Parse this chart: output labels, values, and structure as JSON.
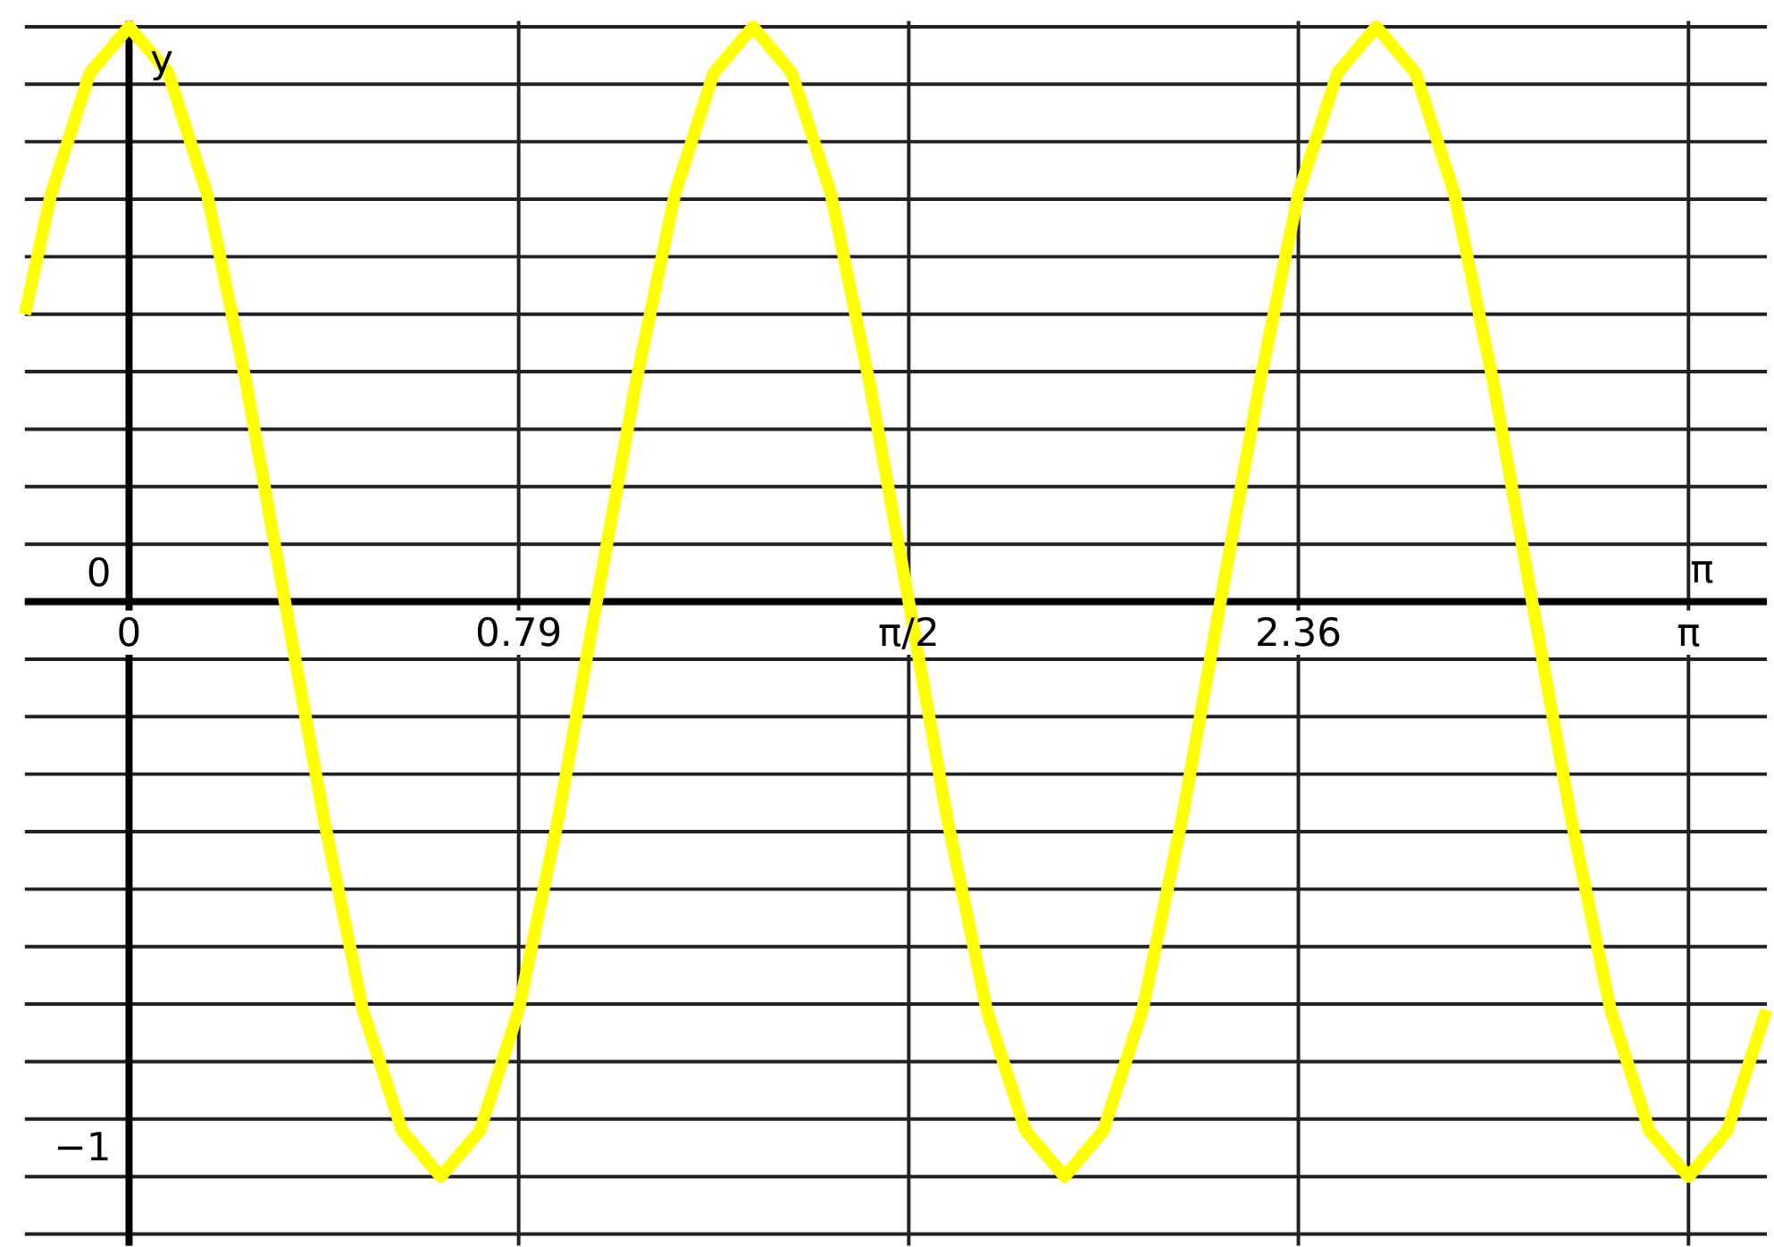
{
  "chart_data": {
    "type": "line",
    "ylabel": "y",
    "x": [
      -0.21,
      -0.157,
      -0.079,
      0,
      0.079,
      0.157,
      0.236,
      0.314,
      0.393,
      0.471,
      0.55,
      0.628,
      0.707,
      0.785,
      0.864,
      0.942,
      1.021,
      1.1,
      1.178,
      1.257,
      1.335,
      1.414,
      1.492,
      1.571,
      1.649,
      1.728,
      1.806,
      1.885,
      1.963,
      2.042,
      2.121,
      2.199,
      2.278,
      2.356,
      2.435,
      2.513,
      2.592,
      2.67,
      2.749,
      2.827,
      2.906,
      2.985,
      3.063,
      3.142,
      3.22,
      3.299
    ],
    "series": [
      {
        "color": "#ffff00",
        "values": [
          0.5,
          0.71,
          0.92,
          1,
          0.92,
          0.71,
          0.38,
          0,
          -0.38,
          -0.71,
          -0.92,
          -1,
          -0.92,
          -0.71,
          -0.38,
          0,
          0.38,
          0.71,
          0.92,
          1,
          0.92,
          0.71,
          0.38,
          0,
          -0.38,
          -0.71,
          -0.92,
          -1,
          -0.92,
          -0.71,
          -0.38,
          0,
          0.38,
          0.71,
          0.92,
          1,
          0.92,
          0.71,
          0.38,
          0,
          -0.38,
          -0.71,
          -0.92,
          -1,
          -0.92,
          -0.71
        ]
      }
    ],
    "xlim": [
      -0.21,
      3.3
    ],
    "ylim": [
      -1.12,
      1.01
    ],
    "xticks": [
      0,
      {
        "value": 0.785,
        "label": "0.79"
      },
      {
        "value": 1.571,
        "label": "π/2"
      },
      {
        "value": 2.356,
        "label": "2.36"
      },
      {
        "value": 3.142,
        "label": "π"
      }
    ],
    "yticks": [
      {
        "value": -1.1,
        "label": null
      },
      {
        "value": -1,
        "label": "−1"
      },
      {
        "value": -0.9,
        "label": null
      },
      {
        "value": -0.8,
        "label": null
      },
      {
        "value": -0.7,
        "label": null
      },
      {
        "value": -0.6,
        "label": null
      },
      {
        "value": -0.5,
        "label": null
      },
      {
        "value": -0.4,
        "label": null
      },
      {
        "value": -0.3,
        "label": null
      },
      {
        "value": -0.2,
        "label": null
      },
      {
        "value": -0.1,
        "label": null
      },
      0,
      {
        "value": 0.1,
        "label": null
      },
      {
        "value": 0.2,
        "label": null
      },
      {
        "value": 0.3,
        "label": null
      },
      {
        "value": 0.4,
        "label": null
      },
      {
        "value": 0.5,
        "label": null
      },
      {
        "value": 0.6,
        "label": null
      },
      {
        "value": 0.7,
        "label": null
      },
      {
        "value": 0.8,
        "label": null
      },
      {
        "value": 0.9,
        "label": null
      },
      {
        "value": 1,
        "label": null
      }
    ],
    "grid": true,
    "marker": "none",
    "line_style": "solid",
    "annotations": [
      "π"
    ]
  }
}
